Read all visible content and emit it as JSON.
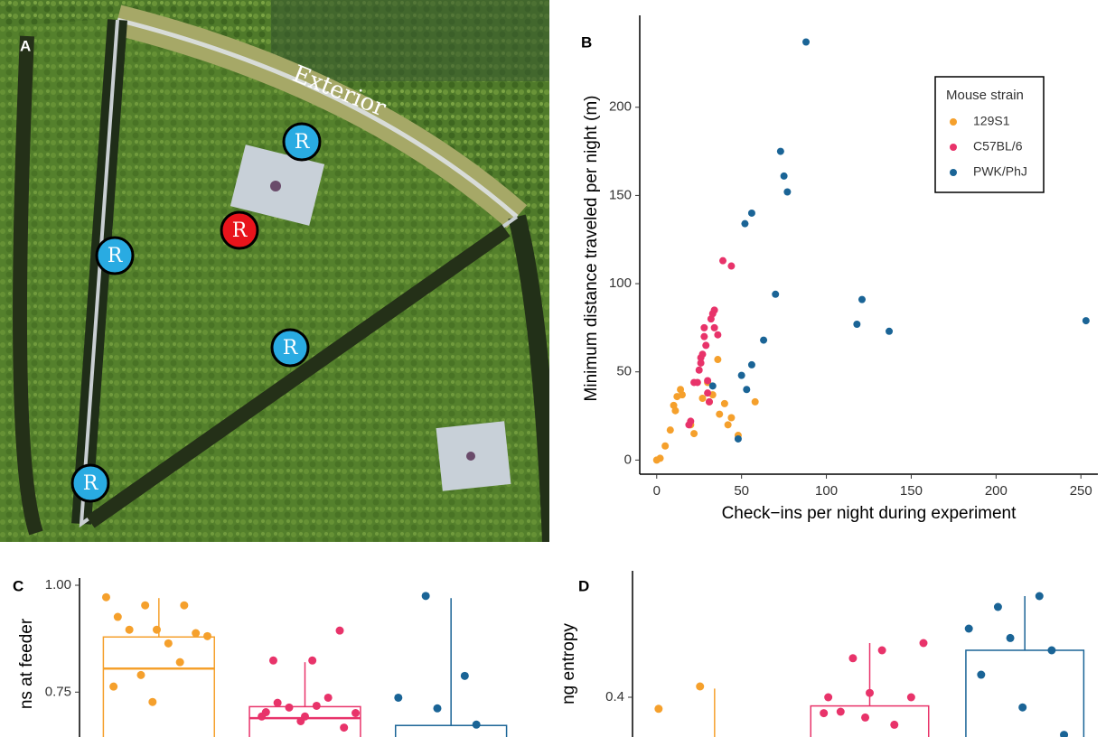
{
  "photo": {
    "label": "A",
    "annotation": "Exterior",
    "markers": [
      {
        "label": "R",
        "color": "#29abe2"
      },
      {
        "label": "R",
        "color": "#29abe2"
      },
      {
        "label": "R",
        "color": "#e8141b"
      },
      {
        "label": "R",
        "color": "#29abe2"
      },
      {
        "label": "R",
        "color": "#29abe2"
      }
    ]
  },
  "chart_data": [
    {
      "type": "scatter",
      "label": "B",
      "x_label": "Check−ins per night during experiment",
      "y_label": "Minimum distance traveled per night (m)",
      "legend_title": "Mouse strain",
      "legend": "upper right",
      "xlim": [
        -10,
        260
      ],
      "ylim": [
        -8,
        248
      ],
      "xticks": [
        0,
        50,
        100,
        150,
        200,
        250
      ],
      "yticks": [
        0,
        50,
        100,
        150,
        200
      ],
      "series": [
        {
          "name": "129S1",
          "color": "#f5a02c",
          "x": [
            0,
            2,
            5,
            8,
            10,
            11,
            12,
            14,
            15,
            20,
            22,
            27,
            30,
            31,
            33,
            36,
            37,
            40,
            42,
            44,
            48,
            58
          ],
          "values": [
            0,
            1,
            8,
            17,
            31,
            28,
            36,
            40,
            37,
            20,
            15,
            35,
            44,
            33,
            37,
            57,
            26,
            32,
            20,
            24,
            14,
            33
          ]
        },
        {
          "name": "C57BL/6",
          "color": "#e8336a",
          "x": [
            19,
            20,
            22,
            24,
            25,
            26,
            26,
            27,
            28,
            28,
            29,
            30,
            31,
            32,
            33,
            34,
            34,
            36,
            39,
            44,
            30
          ],
          "values": [
            20,
            22,
            44,
            44,
            51,
            58,
            55,
            60,
            75,
            70,
            65,
            45,
            33,
            80,
            83,
            85,
            75,
            71,
            113,
            110,
            38
          ]
        },
        {
          "name": "PWK/PhJ",
          "color": "#1a6496",
          "x": [
            88,
            73,
            75,
            77,
            56,
            52,
            70,
            121,
            118,
            137,
            253,
            63,
            56,
            50,
            33,
            53,
            48
          ],
          "values": [
            237,
            175,
            161,
            152,
            140,
            134,
            94,
            91,
            77,
            73,
            79,
            68,
            54,
            48,
            42,
            40,
            12
          ]
        }
      ]
    },
    {
      "type": "box",
      "label": "C",
      "y_label": "ns at feeder",
      "ylim": [
        0.645,
        1.0
      ],
      "yticks": [
        0.75,
        {
          "value": 1,
          "label": "1.00"
        }
      ],
      "series": [
        {
          "color": "#f5a02c",
          "q3": 0.879,
          "median": 0.805,
          "whisker_high": 0.97,
          "points": [
            0.972,
            0.953,
            0.953,
            0.926,
            0.896,
            0.888,
            0.896,
            0.864,
            0.881,
            0.79,
            0.82,
            0.763,
            0.727
          ]
        },
        {
          "color": "#e8336a",
          "q3": 0.716,
          "median": 0.689,
          "whisker_high": 0.82,
          "points": [
            0.703,
            0.693,
            0.667,
            0.725,
            0.718,
            0.701,
            0.714,
            0.737,
            0.693,
            0.682,
            0.894,
            0.824,
            0.824
          ]
        },
        {
          "color": "#1a6496",
          "q3": 0.672,
          "whisker_high": 0.97,
          "points": [
            0.975,
            0.788,
            0.737,
            0.712,
            0.674
          ]
        }
      ]
    },
    {
      "type": "box",
      "label": "D",
      "y_label": "ng entropy",
      "ylim": [
        0.3725,
        0.4825
      ],
      "yticks": [
        0.4
      ],
      "series": [
        {
          "color": "#f5a02c",
          "whisker_high": 0.406,
          "points": [
            0.392,
            0.4075
          ]
        },
        {
          "color": "#e8336a",
          "q3": 0.394,
          "whisker_high": 0.4375,
          "points": [
            0.4,
            0.403,
            0.4,
            0.39,
            0.4325,
            0.4375,
            0.427,
            0.381,
            0.389,
            0.386
          ]
        },
        {
          "color": "#1a6496",
          "q3": 0.4325,
          "whisker_high": 0.47,
          "points": [
            0.4625,
            0.47,
            0.4475,
            0.441,
            0.4325,
            0.4156,
            0.393,
            0.374
          ]
        }
      ]
    }
  ]
}
